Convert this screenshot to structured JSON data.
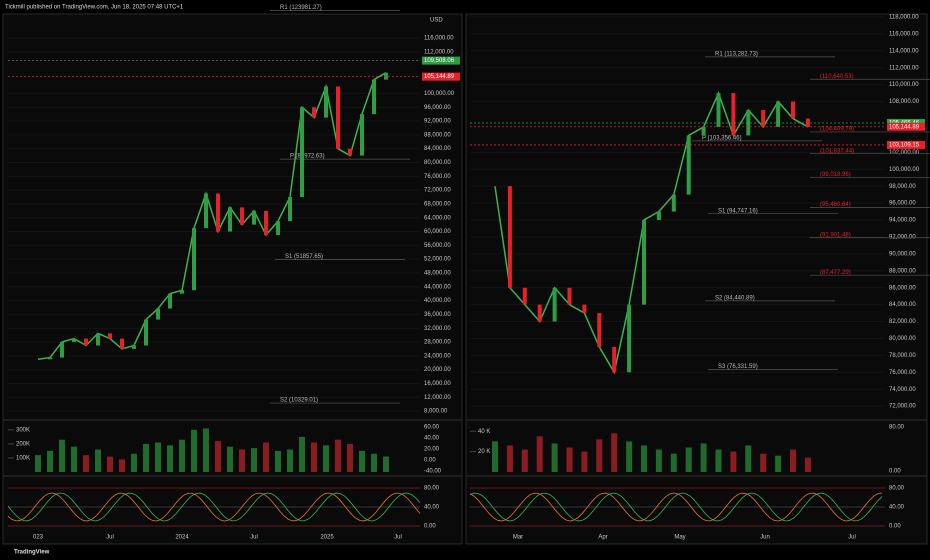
{
  "header": "Tickmill published on TradingView.com, Jun 18, 2025 07:48 UTC+1",
  "footer": "TradingView",
  "panels": [
    {
      "currency": "USD",
      "ylim": [
        6000,
        123000
      ],
      "yticks": [
        {
          "value": 116000,
          "label": "116,000.00"
        },
        {
          "value": 112000,
          "label": "112,000.00"
        },
        {
          "value": 100000,
          "label": "100,000.00"
        },
        {
          "value": 96000,
          "label": "96,000.00"
        },
        {
          "value": 92000,
          "label": "92,000.00"
        },
        {
          "value": 88000,
          "label": "88,000.00"
        },
        {
          "value": 84000,
          "label": "84,000.00"
        },
        {
          "value": 80000,
          "label": "80,000.00"
        },
        {
          "value": 76000,
          "label": "76,000.00"
        },
        {
          "value": 72000,
          "label": "72,000.00"
        },
        {
          "value": 68000,
          "label": "68,000.00"
        },
        {
          "value": 64000,
          "label": "64,000.00"
        },
        {
          "value": 60000,
          "label": "60,000.00"
        },
        {
          "value": 56000,
          "label": "56,000.00"
        },
        {
          "value": 52000,
          "label": "52,000.00"
        },
        {
          "value": 48000,
          "label": "48,000.00"
        },
        {
          "value": 44000,
          "label": "44,000.00"
        },
        {
          "value": 40000,
          "label": "40,000.00"
        },
        {
          "value": 36000,
          "label": "36,000.00"
        },
        {
          "value": 32000,
          "label": "32,000.00"
        },
        {
          "value": 28000,
          "label": "28,000.00"
        },
        {
          "value": 24000,
          "label": "24,000.00"
        },
        {
          "value": 20000,
          "label": "20,000.00"
        },
        {
          "value": 16000,
          "label": "16,000.00"
        },
        {
          "value": 12000,
          "label": "12,000.00"
        },
        {
          "value": 8000,
          "label": "8,000.00"
        }
      ],
      "closes": [
        23000,
        23500,
        28000,
        29000,
        27000,
        30500,
        29000,
        26000,
        27000,
        34500,
        37700,
        42000,
        43000,
        61000,
        71000,
        60000,
        67000,
        62000,
        66000,
        59000,
        63000,
        70000,
        96000,
        93000,
        102000,
        84000,
        82000,
        94000,
        104000,
        106000
      ],
      "xlabels": [
        "023",
        "Jul",
        "2024",
        "Jul",
        "2025",
        "Jul"
      ],
      "levels": [
        {
          "label": "R1 (123981.27)",
          "value": 123981.27
        },
        {
          "label": "P (80972.63)",
          "value": 80972.63
        },
        {
          "label": "S1 (51857.65)",
          "value": 51857.65
        },
        {
          "label": "S2 (10329.01)",
          "value": 10329.01
        }
      ],
      "tags": [
        {
          "label": "109,508.06",
          "value": 109508.06,
          "color": "#2e9e45"
        },
        {
          "label": "105,144.89",
          "value": 105144.89,
          "color": "#e8202a"
        }
      ],
      "volume": {
        "ylim": [
          0,
          370000
        ],
        "yticks": [
          {
            "value": 300000,
            "label": "300K"
          },
          {
            "value": 200000,
            "label": "200K"
          },
          {
            "value": 100000,
            "label": "100K"
          }
        ],
        "values": [
          120000,
          150000,
          230000,
          180000,
          120000,
          160000,
          110000,
          90000,
          130000,
          200000,
          210000,
          190000,
          230000,
          300000,
          310000,
          220000,
          180000,
          160000,
          170000,
          210000,
          150000,
          160000,
          250000,
          210000,
          190000,
          230000,
          200000,
          150000,
          130000,
          110000
        ],
        "y2ticks": [
          "60.00",
          "40.00",
          "20.00",
          "0.00",
          "-40.00"
        ]
      },
      "osc_ticks": [
        "80.00",
        "40.00",
        "0.00"
      ]
    },
    {
      "currency": "",
      "ylim": [
        70600,
        118350
      ],
      "yticks": [
        {
          "value": 118000,
          "label": "118,000.00"
        },
        {
          "value": 116000,
          "label": "116,000.00"
        },
        {
          "value": 114000,
          "label": "114,000.00"
        },
        {
          "value": 112000,
          "label": "112,000.00"
        },
        {
          "value": 110000,
          "label": "110,000.00"
        },
        {
          "value": 108000,
          "label": "108,000.00"
        },
        {
          "value": 102000,
          "label": "102,000.00"
        },
        {
          "value": 100000,
          "label": "100,000.00"
        },
        {
          "value": 98000,
          "label": "98,000.00"
        },
        {
          "value": 96000,
          "label": "96,000.00"
        },
        {
          "value": 94000,
          "label": "94,000.00"
        },
        {
          "value": 92000,
          "label": "92,000.00"
        },
        {
          "value": 90000,
          "label": "90,000.00"
        },
        {
          "value": 88000,
          "label": "88,000.00"
        },
        {
          "value": 86000,
          "label": "86,000.00"
        },
        {
          "value": 84000,
          "label": "84,000.00"
        },
        {
          "value": 82000,
          "label": "82,000.00"
        },
        {
          "value": 80000,
          "label": "80,000.00"
        },
        {
          "value": 78000,
          "label": "78,000.00"
        },
        {
          "value": 76000,
          "label": "76,000.00"
        },
        {
          "value": 74000,
          "label": "74,000.00"
        },
        {
          "value": 72000,
          "label": "72,000.00"
        }
      ],
      "closes": [
        98000,
        86000,
        84000,
        82000,
        86000,
        84000,
        83000,
        79000,
        76000,
        84000,
        94000,
        95000,
        97000,
        104000,
        105000,
        109000,
        104000,
        107000,
        105000,
        108000,
        106000,
        105000
      ],
      "xlabels": [
        "Mar",
        "Apr",
        "May",
        "Jun",
        "Jul"
      ],
      "levels": [
        {
          "label": "R1 (113,282.73)",
          "value": 113282.73
        },
        {
          "label": "(110,640.53)",
          "value": 110640.53
        },
        {
          "label": "(104,409.79)",
          "value": 104409.79
        },
        {
          "label": "P (103,356.46)",
          "value": 103356.46
        },
        {
          "label": "(101,837.44)",
          "value": 101837.44
        },
        {
          "label": "(99,018.96)",
          "value": 99018.96
        },
        {
          "label": "(95,460.64)",
          "value": 95460.64
        },
        {
          "label": "S1 (94,747.16)",
          "value": 94747.16
        },
        {
          "label": "(91,901.48)",
          "value": 91901.48
        },
        {
          "label": "(87,477.29)",
          "value": 87477.29
        },
        {
          "label": "S2 (84,440.89)",
          "value": 84440.89
        },
        {
          "label": "S3 (76,331.59)",
          "value": 76331.59
        }
      ],
      "tags": [
        {
          "label": "105,465.46",
          "value": 105465.46,
          "color": "#2e9e45"
        },
        {
          "label": "105,144.89",
          "value": 105144.89,
          "color": "#e8202a"
        },
        {
          "label": "103,109.15",
          "value": 103109.15,
          "color": "#e8202a"
        }
      ],
      "volume": {
        "ylim": [
          0,
          51000
        ],
        "yticks": [
          {
            "value": 40000,
            "label": "40 K"
          },
          {
            "value": 20000,
            "label": "20 K"
          }
        ],
        "values": [
          30000,
          26000,
          22000,
          35000,
          28000,
          24000,
          20000,
          32000,
          38000,
          30000,
          26000,
          22000,
          18000,
          24000,
          28000,
          22000,
          20000,
          26000,
          18000,
          16000,
          22000,
          14000
        ],
        "y2ticks": [
          "80.00",
          "0.00"
        ]
      },
      "osc_ticks": [
        "80.00",
        "40.00",
        "0.00"
      ]
    }
  ]
}
